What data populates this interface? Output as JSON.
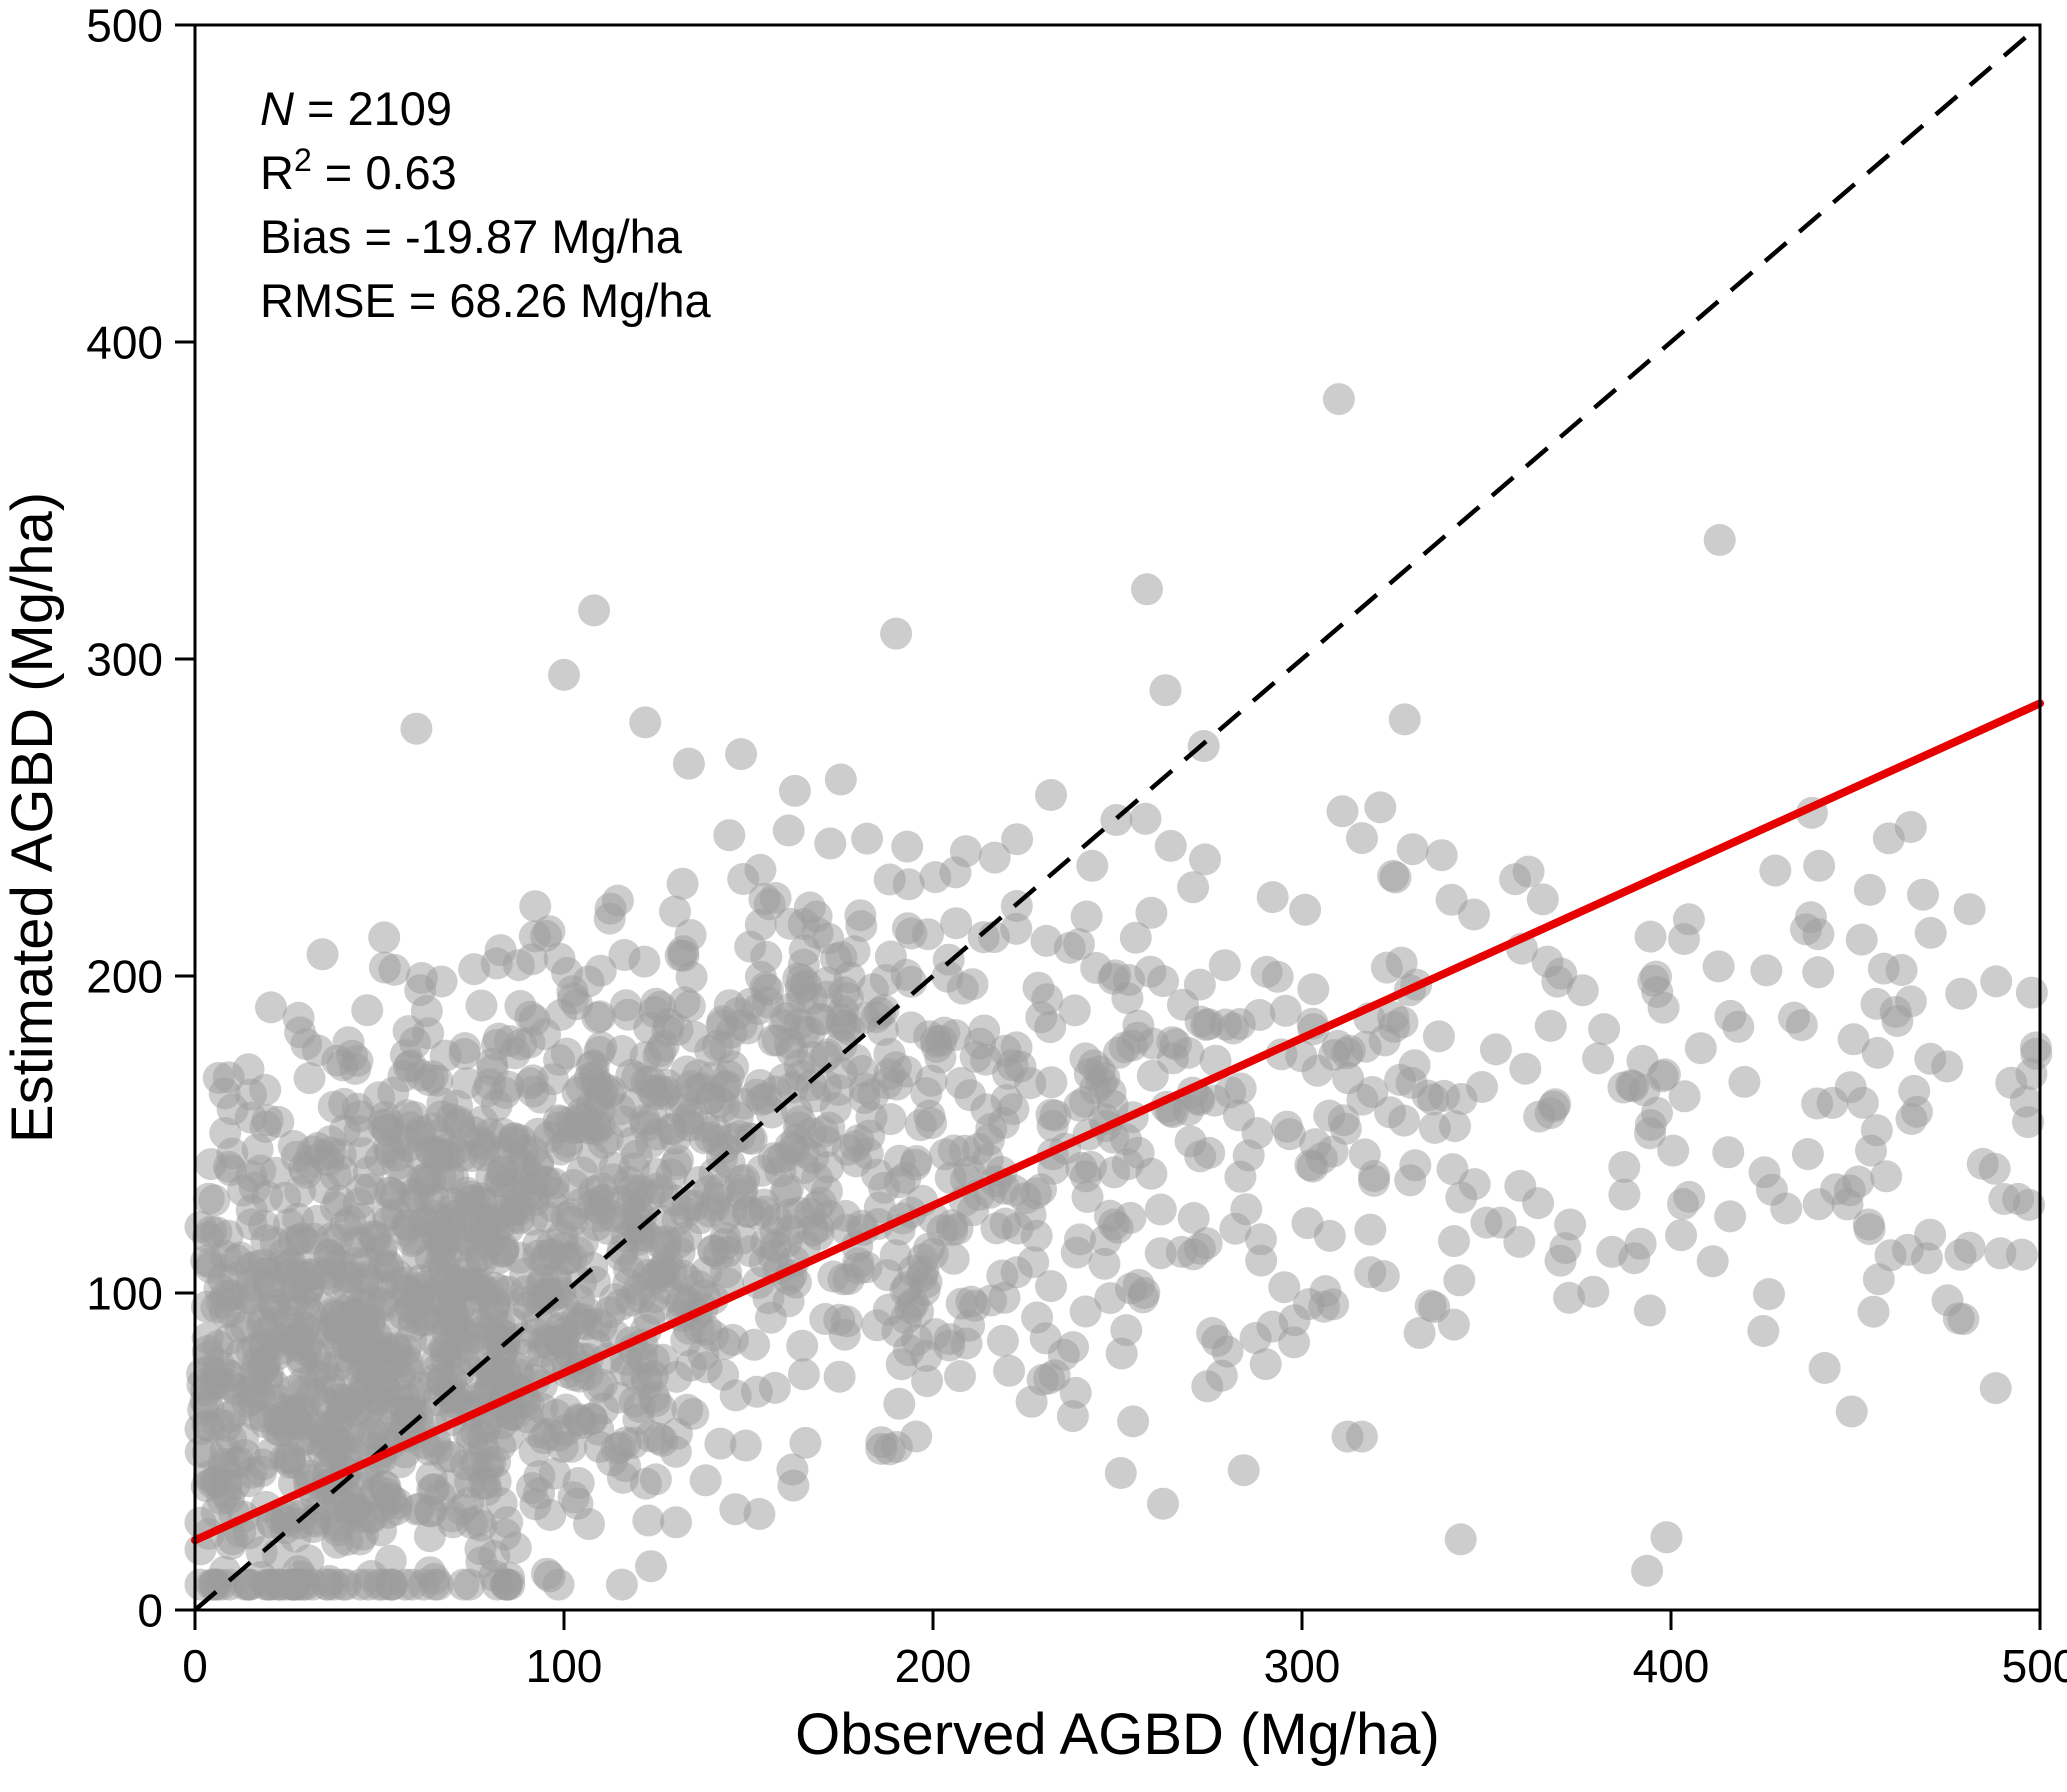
{
  "figure": {
    "background": "#ffffff"
  },
  "chart_data": {
    "type": "scatter",
    "title": "",
    "xlabel": "Observed AGBD (Mg/ha)",
    "ylabel": "Estimated AGBD (Mg/ha)",
    "xlim": [
      0,
      500
    ],
    "ylim": [
      0,
      500
    ],
    "xticks": [
      0,
      100,
      200,
      300,
      400,
      500
    ],
    "yticks": [
      0,
      100,
      200,
      300,
      400,
      500
    ],
    "grid": false,
    "legend": "none",
    "axis_color": "#000000",
    "stats": {
      "n": 2109,
      "r2": 0.63,
      "bias_mg_ha": -19.87,
      "rmse_mg_ha": 68.26,
      "lines": [
        [
          {
            "t": "N",
            "style": "italic"
          },
          {
            "t": " = 2109",
            "style": "normal"
          }
        ],
        [
          {
            "t": "R",
            "style": "normal"
          },
          {
            "t": "2",
            "style": "sup"
          },
          {
            "t": " = 0.63",
            "style": "normal"
          }
        ],
        [
          {
            "t": "Bias = -19.87 Mg/ha",
            "style": "normal"
          }
        ],
        [
          {
            "t": "RMSE = 68.26 Mg/ha",
            "style": "normal"
          }
        ]
      ]
    },
    "identity_line": {
      "x1": 0,
      "y1": 0,
      "x2": 500,
      "y2": 500,
      "style": "dashed",
      "color": "#000000",
      "width": 4.5,
      "dash": "28 17"
    },
    "regression_line": {
      "x1": 0,
      "y1": 22,
      "x2": 500,
      "y2": 286,
      "color": "#e60000",
      "width": 8
    },
    "scatter": {
      "n_points": 2109,
      "seed": 42,
      "marker_color": "#9b9b9b",
      "marker_opacity": 0.5,
      "marker_radius_px": 16,
      "x_model": {
        "p_exp": 0.1,
        "exp_scale": 45,
        "p_gamma2": 0.75,
        "gamma_scale": 55,
        "uniform_min": 120,
        "uniform_max": 500,
        "x_min": 1.5,
        "x_max": 499
      },
      "y_model": {
        "intercept": 62,
        "slope_low": 0.52,
        "knee": 160,
        "slope_high": 0.05,
        "noise_sd": 46,
        "y_min": 8,
        "y_max": 465
      },
      "outliers": [
        [
          310,
          382
        ],
        [
          258,
          322
        ],
        [
          190,
          308
        ],
        [
          100,
          295
        ],
        [
          122,
          280
        ],
        [
          60,
          278
        ],
        [
          148,
          270
        ],
        [
          175,
          262
        ],
        [
          330,
          240
        ],
        [
          465,
          192
        ],
        [
          452,
          160
        ],
        [
          478,
          92
        ],
        [
          440,
          128
        ],
        [
          425,
          88
        ],
        [
          398,
          190
        ],
        [
          488,
          70
        ]
      ]
    }
  }
}
